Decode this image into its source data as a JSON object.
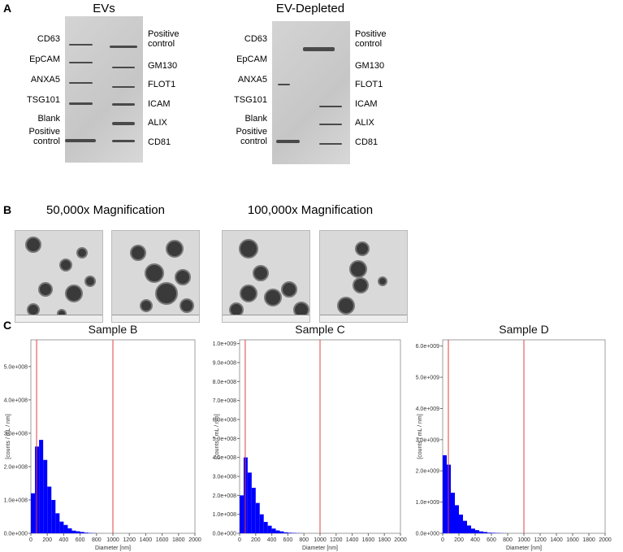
{
  "panel_a": {
    "label": "A",
    "blots": [
      {
        "title": "EVs",
        "left_labels": [
          "CD63",
          "EpCAM",
          "ANXA5",
          "TSG101",
          "Blank",
          "Positive control"
        ],
        "right_labels": [
          "Positive control",
          "GM130",
          "FLOT1",
          "ICAM",
          "ALIX",
          "CD81"
        ]
      },
      {
        "title": "EV-Depleted",
        "left_labels": [
          "CD63",
          "EpCAM",
          "ANXA5",
          "TSG101",
          "Blank",
          "Positive control"
        ],
        "right_labels": [
          "Positive control",
          "GM130",
          "FLOT1",
          "ICAM",
          "ALIX",
          "CD81"
        ]
      }
    ]
  },
  "panel_b": {
    "label": "B",
    "groups": [
      "50,000x Magnification",
      "100,000x Magnification"
    ]
  },
  "panel_c": {
    "label": "C"
  },
  "chart_data": [
    {
      "type": "histogram",
      "title": "Sample B",
      "x_label": "Diameter [nm]",
      "y_label": "[counts / mL / nm]",
      "color": "#0000ff",
      "bins": [
        0,
        50,
        100,
        150,
        200,
        250,
        300,
        350,
        400,
        450,
        500,
        550,
        600,
        650,
        700,
        750,
        800
      ],
      "values": [
        120000000,
        260000000,
        280000000,
        220000000,
        140000000,
        100000000,
        60000000,
        35000000,
        25000000,
        15000000,
        8000000,
        6000000,
        4000000,
        2000000,
        1000000,
        500000
      ],
      "vlines": [
        70,
        1000
      ],
      "vline_color": "#e04040",
      "xlim": [
        0,
        2000
      ],
      "xticks": [
        0,
        200,
        400,
        600,
        800,
        1000,
        1200,
        1400,
        1600,
        1800,
        2000
      ],
      "ylim": [
        0,
        580000000
      ],
      "yticks": [
        {
          "value": 0,
          "label": "0.0e+000"
        },
        {
          "value": 100000000,
          "label": "1.0e+008"
        },
        {
          "value": 200000000,
          "label": "2.0e+008"
        },
        {
          "value": 300000000,
          "label": "3.0e+008"
        },
        {
          "value": 400000000,
          "label": "4.0e+008"
        },
        {
          "value": 500000000,
          "label": "5.0e+008"
        }
      ]
    },
    {
      "type": "histogram",
      "title": "Sample C",
      "x_label": "Diameter [nm]",
      "y_label": "[counts / mL / nm]",
      "color": "#0000ff",
      "bins": [
        0,
        50,
        100,
        150,
        200,
        250,
        300,
        350,
        400,
        450,
        500,
        550,
        600,
        650,
        700,
        750,
        800
      ],
      "values": [
        200000000,
        400000000,
        320000000,
        240000000,
        160000000,
        100000000,
        60000000,
        40000000,
        25000000,
        15000000,
        10000000,
        5000000,
        3000000,
        2000000,
        1000000,
        500000
      ],
      "vlines": [
        70,
        1000
      ],
      "vline_color": "#e04040",
      "xlim": [
        0,
        2000
      ],
      "xticks": [
        0,
        200,
        400,
        600,
        800,
        1000,
        1200,
        1400,
        1600,
        1800,
        2000
      ],
      "ylim": [
        0,
        1020000000
      ],
      "yticks": [
        {
          "value": 0,
          "label": "0.0e+000"
        },
        {
          "value": 100000000,
          "label": "1.0e+008"
        },
        {
          "value": 200000000,
          "label": "2.0e+008"
        },
        {
          "value": 300000000,
          "label": "3.0e+008"
        },
        {
          "value": 400000000,
          "label": "4.0e+008"
        },
        {
          "value": 500000000,
          "label": "5.0e+008"
        },
        {
          "value": 600000000,
          "label": "6.0e+008"
        },
        {
          "value": 700000000,
          "label": "7.0e+008"
        },
        {
          "value": 800000000,
          "label": "8.0e+008"
        },
        {
          "value": 900000000,
          "label": "9.0e+008"
        },
        {
          "value": 1000000000,
          "label": "1.0e+009"
        }
      ]
    },
    {
      "type": "histogram",
      "title": "Sample D",
      "x_label": "Diameter [nm]",
      "y_label": "[counts / mL / nm]",
      "color": "#0000ff",
      "bins": [
        0,
        50,
        100,
        150,
        200,
        250,
        300,
        350,
        400,
        450,
        500,
        550,
        600,
        650,
        700,
        750,
        800
      ],
      "values": [
        2500000000,
        2200000000,
        1300000000,
        900000000,
        600000000,
        400000000,
        250000000,
        150000000,
        100000000,
        60000000,
        40000000,
        20000000,
        15000000,
        10000000,
        5000000,
        2000000
      ],
      "vlines": [
        70,
        1000
      ],
      "vline_color": "#e04040",
      "xlim": [
        0,
        2000
      ],
      "xticks": [
        0,
        200,
        400,
        600,
        800,
        1000,
        1200,
        1400,
        1600,
        1800,
        2000
      ],
      "ylim": [
        0,
        6200000000
      ],
      "yticks": [
        {
          "value": 0,
          "label": "0.0e+000"
        },
        {
          "value": 1000000000,
          "label": "1.0e+009"
        },
        {
          "value": 2000000000,
          "label": "2.0e+009"
        },
        {
          "value": 3000000000,
          "label": "3.0e+009"
        },
        {
          "value": 4000000000,
          "label": "4.0e+009"
        },
        {
          "value": 5000000000,
          "label": "5.0e+009"
        },
        {
          "value": 6000000000,
          "label": "6.0e+009"
        }
      ]
    }
  ]
}
